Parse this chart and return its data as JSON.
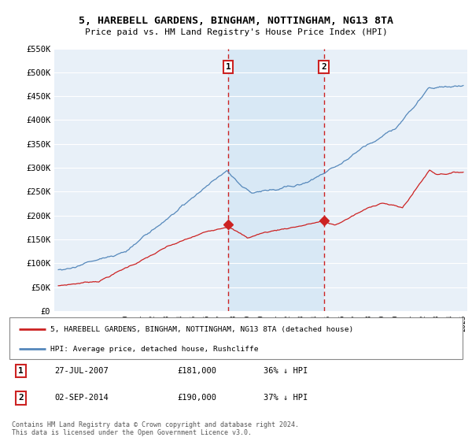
{
  "title": "5, HAREBELL GARDENS, BINGHAM, NOTTINGHAM, NG13 8TA",
  "subtitle": "Price paid vs. HM Land Registry's House Price Index (HPI)",
  "legend_line1": "5, HAREBELL GARDENS, BINGHAM, NOTTINGHAM, NG13 8TA (detached house)",
  "legend_line2": "HPI: Average price, detached house, Rushcliffe",
  "ann1": {
    "label": "1",
    "date": "27-JUL-2007",
    "price": "£181,000",
    "hpi": "36% ↓ HPI",
    "x_year": 2007.58
  },
  "ann2": {
    "label": "2",
    "date": "02-SEP-2014",
    "price": "£190,000",
    "hpi": "37% ↓ HPI",
    "x_year": 2014.67
  },
  "footer": "Contains HM Land Registry data © Crown copyright and database right 2024.\nThis data is licensed under the Open Government Licence v3.0.",
  "red_color": "#cc2222",
  "blue_color": "#5588bb",
  "shade_color": "#d8e8f5",
  "background_color": "#e8f0f8",
  "plot_bg": "#ffffff",
  "grid_color": "#ffffff",
  "ylim": [
    0,
    550000
  ],
  "xlim_start": 1994.7,
  "xlim_end": 2025.3,
  "ann1_red_y": 181000,
  "ann2_red_y": 190000
}
